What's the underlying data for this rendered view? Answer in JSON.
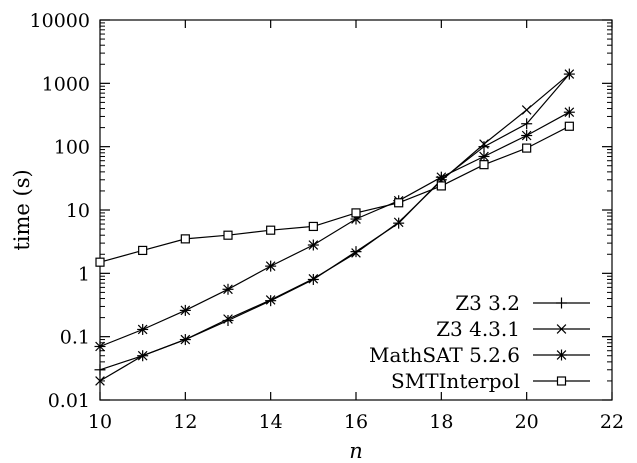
{
  "chart_data": {
    "type": "line",
    "title": "",
    "xlabel": "n",
    "ylabel": "time (s)",
    "xlim": [
      10,
      22
    ],
    "ylim": [
      0.01,
      10000
    ],
    "y_scale": "log",
    "grid": false,
    "legend_position": "bottom-right",
    "x_ticks": [
      "10",
      "12",
      "14",
      "16",
      "18",
      "20",
      "22"
    ],
    "y_ticks": [
      "0.01",
      "0.1",
      "1",
      "10",
      "100",
      "1000",
      "10000"
    ],
    "x": [
      10,
      11,
      12,
      13,
      14,
      15,
      16,
      17,
      18,
      19,
      20,
      21
    ],
    "series": [
      {
        "name": "Z3 3.2",
        "marker": "plus",
        "values": [
          0.03,
          0.05,
          0.09,
          0.18,
          0.37,
          0.8,
          2.2,
          6.2,
          30,
          100,
          230,
          1400
        ]
      },
      {
        "name": "Z3 4.3.1",
        "marker": "cross",
        "values": [
          0.02,
          0.05,
          0.09,
          0.19,
          0.38,
          0.82,
          2.1,
          6.4,
          29,
          110,
          380,
          1400
        ]
      },
      {
        "name": "MathSAT 5.2.6",
        "marker": "asterisk",
        "values": [
          0.07,
          0.13,
          0.26,
          0.56,
          1.3,
          2.8,
          7.2,
          14,
          33,
          70,
          150,
          350
        ]
      },
      {
        "name": "SMTInterpol",
        "marker": "square",
        "values": [
          1.5,
          2.3,
          3.5,
          4.0,
          4.8,
          5.5,
          9.0,
          13,
          24,
          52,
          95,
          210
        ]
      }
    ]
  }
}
